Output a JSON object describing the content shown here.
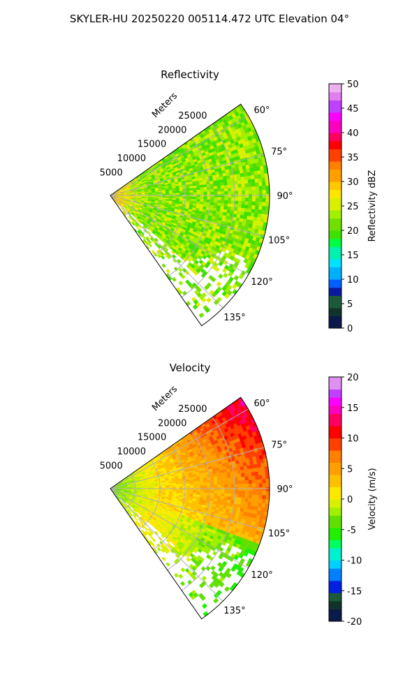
{
  "figure": {
    "title": "SKYLER-HU  20250220  005114.472 UTC Elevation 04°"
  },
  "chart_data": [
    {
      "type": "heatmap",
      "subtype": "polar-sector (radar PPI)",
      "title": "Reflectivity",
      "range_axis_label": "Meters",
      "range_ticks": [
        5000,
        10000,
        15000,
        20000,
        25000
      ],
      "range_lim": [
        0,
        32000
      ],
      "azimuth_ticks": [
        "60°",
        "75°",
        "90°",
        "105°",
        "120°",
        "135°"
      ],
      "azimuth_lim": [
        55,
        145
      ],
      "grid": true,
      "colorbar": {
        "label": "Reflectivity dBZ",
        "range": [
          0,
          50
        ],
        "ticks": [
          0,
          5,
          10,
          15,
          20,
          25,
          30,
          35,
          40,
          45,
          50
        ],
        "colormap": [
          {
            "v": 0,
            "c": "#0b1a4a"
          },
          {
            "v": 2,
            "c": "#10332a"
          },
          {
            "v": 4,
            "c": "#1d5a3a"
          },
          {
            "v": 6,
            "c": "#0a1aa0"
          },
          {
            "v": 8,
            "c": "#0060ff"
          },
          {
            "v": 10,
            "c": "#00b0ff"
          },
          {
            "v": 12,
            "c": "#00e0ff"
          },
          {
            "v": 14,
            "c": "#00f0b0"
          },
          {
            "v": 16,
            "c": "#00ff40"
          },
          {
            "v": 18,
            "c": "#40e000"
          },
          {
            "v": 20,
            "c": "#70e000"
          },
          {
            "v": 22,
            "c": "#a0f000"
          },
          {
            "v": 24,
            "c": "#d8f000"
          },
          {
            "v": 26,
            "c": "#ffe600"
          },
          {
            "v": 28,
            "c": "#ffc800"
          },
          {
            "v": 30,
            "c": "#ffa000"
          },
          {
            "v": 32,
            "c": "#ff8000"
          },
          {
            "v": 34,
            "c": "#ff4000"
          },
          {
            "v": 36,
            "c": "#ff0000"
          },
          {
            "v": 38,
            "c": "#ff0060"
          },
          {
            "v": 40,
            "c": "#ff00c0"
          },
          {
            "v": 42,
            "c": "#ff00ff"
          },
          {
            "v": 44,
            "c": "#c040ff"
          },
          {
            "v": 46,
            "c": "#e080f0"
          },
          {
            "v": 48,
            "c": "#f0b0f0"
          },
          {
            "v": 50,
            "c": "#fbe0fb"
          }
        ]
      },
      "field_description": {
        "dominant_value": 22,
        "near_radar_value": 30,
        "near_radar_range_m": 7000,
        "noise": 4,
        "sparse_edge": "south-east (azimuth >115°)"
      }
    },
    {
      "type": "heatmap",
      "subtype": "polar-sector (radar PPI)",
      "title": "Velocity",
      "range_axis_label": "Meters",
      "range_ticks": [
        5000,
        10000,
        15000,
        20000,
        25000
      ],
      "range_lim": [
        0,
        32000
      ],
      "azimuth_ticks": [
        "60°",
        "75°",
        "90°",
        "105°",
        "120°",
        "135°"
      ],
      "azimuth_lim": [
        55,
        145
      ],
      "grid": true,
      "colorbar": {
        "label": "Velocity (m/s)",
        "range": [
          -20,
          20
        ],
        "ticks": [
          -20,
          -15,
          -10,
          -5,
          0,
          5,
          10,
          15,
          20
        ],
        "colormap": [
          {
            "v": -20,
            "c": "#0b1a4a"
          },
          {
            "v": -18,
            "c": "#10332a"
          },
          {
            "v": -17,
            "c": "#1d5a3a"
          },
          {
            "v": -15.5,
            "c": "#0020e0"
          },
          {
            "v": -13.5,
            "c": "#0080ff"
          },
          {
            "v": -11.5,
            "c": "#00d0ff"
          },
          {
            "v": -10,
            "c": "#00f0d0"
          },
          {
            "v": -8.5,
            "c": "#00ff60"
          },
          {
            "v": -7,
            "c": "#20f000"
          },
          {
            "v": -5,
            "c": "#60e000"
          },
          {
            "v": -3,
            "c": "#a0f000"
          },
          {
            "v": -1.5,
            "c": "#d8f000"
          },
          {
            "v": 0,
            "c": "#ffe800"
          },
          {
            "v": 2,
            "c": "#ffc000"
          },
          {
            "v": 4,
            "c": "#ffa000"
          },
          {
            "v": 6,
            "c": "#ff8000"
          },
          {
            "v": 8,
            "c": "#ff4000"
          },
          {
            "v": 10,
            "c": "#ff0000"
          },
          {
            "v": 12,
            "c": "#ff0060"
          },
          {
            "v": 14,
            "c": "#ff00c0"
          },
          {
            "v": 15,
            "c": "#ff00ff"
          },
          {
            "v": 16.5,
            "c": "#c040ff"
          },
          {
            "v": 18,
            "c": "#e090f0"
          },
          {
            "v": 20,
            "c": "#fbe0fb"
          }
        ]
      },
      "field_description": {
        "near_radar_value": -4,
        "mid_value": 1,
        "far_north_value": 14,
        "far_east_value": 9,
        "far_south_value": -5,
        "noise": 1.5,
        "sparse_edge": "south-east (azimuth >115°)"
      }
    }
  ]
}
